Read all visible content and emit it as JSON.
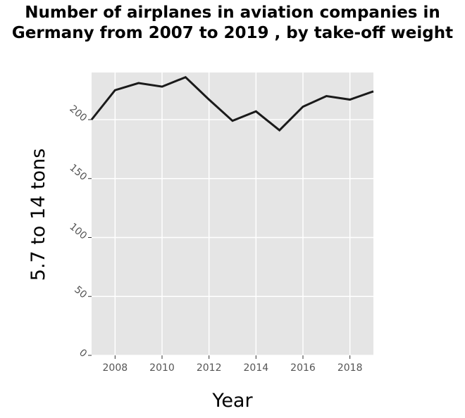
{
  "chart_data": {
    "type": "line",
    "title": "Number of airplanes in aviation companies in Germany from 2007 to 2019 , by take-off weight",
    "xlabel": "Year",
    "ylabel": "5.7 to 14 tons",
    "x": [
      2007,
      2008,
      2009,
      2010,
      2011,
      2012,
      2013,
      2014,
      2015,
      2016,
      2017,
      2018,
      2019
    ],
    "series": [
      {
        "values": [
          200,
          225,
          231,
          228,
          236,
          217,
          199,
          207,
          191,
          211,
          220,
          217,
          224
        ]
      }
    ],
    "xlim": [
      2007,
      2019
    ],
    "ylim": [
      0,
      240
    ],
    "xticks": [
      "2008",
      "2010",
      "2012",
      "2014",
      "2016",
      "2018"
    ],
    "yticks": [
      "0",
      "50",
      "100",
      "150",
      "200"
    ],
    "grid": true,
    "colors": {
      "plot_background": "#e5e5e5",
      "grid": "#ffffff",
      "line": "#1a1a1a"
    }
  }
}
